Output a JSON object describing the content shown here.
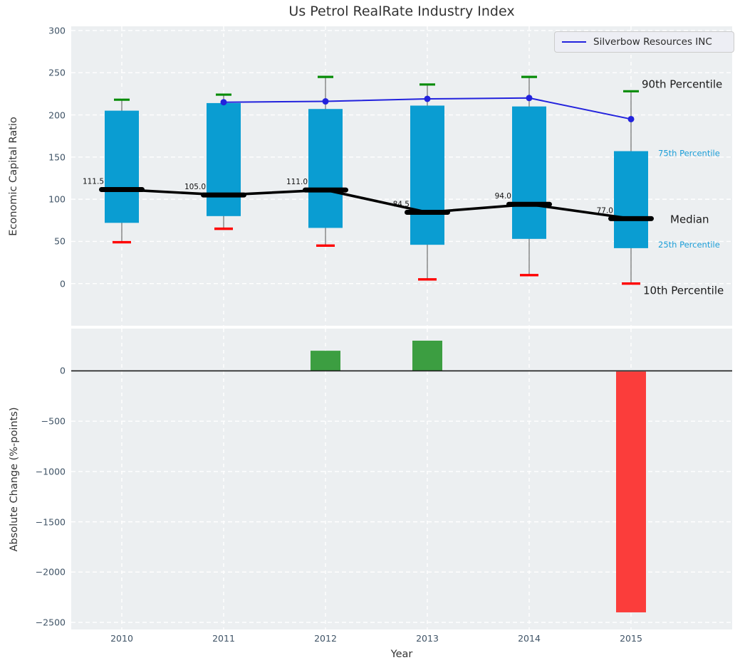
{
  "figure": {
    "title": "Us Petrol RealRate Industry Index",
    "legend": {
      "label": "Silverbow Resources INC"
    },
    "colors": {
      "axes_background": "#eceff1",
      "grid": "#ffffff",
      "box_fill": "#0a9dd2",
      "whisker": "#6e6e6e",
      "cap_90th_green": "#078c07",
      "cap_10th_red": "#fe0000",
      "median_black": "#000000",
      "company_line_blue": "#2222dd",
      "bar_positive_green": "#3c9e41",
      "bar_negative_red": "#fb3d3b",
      "percentile_label_blue": "#1b9ed8",
      "tick_label": "#3f5366"
    }
  },
  "chart_data": [
    {
      "type": "box",
      "title": "Us Petrol RealRate Industry Index",
      "ylabel": "Economic Capital Ratio",
      "ylim": [
        -50,
        305
      ],
      "yticks": [
        300,
        250,
        200,
        150,
        100,
        50,
        0
      ],
      "grid": true,
      "legend_position": "upper right",
      "categories": [
        "2010",
        "2011",
        "2012",
        "2013",
        "2014",
        "2015"
      ],
      "stats": [
        {
          "year": "2010",
          "p10": 49,
          "p25": 72,
          "median": 111.5,
          "p75": 205,
          "p90": 218,
          "median_label": "111.5"
        },
        {
          "year": "2011",
          "p10": 65,
          "p25": 80,
          "median": 105.0,
          "p75": 214,
          "p90": 224,
          "median_label": "105.0"
        },
        {
          "year": "2012",
          "p10": 45,
          "p25": 66,
          "median": 111.0,
          "p75": 207,
          "p90": 245,
          "median_label": "111.0"
        },
        {
          "year": "2013",
          "p10": 5,
          "p25": 46,
          "median": 84.5,
          "p75": 211,
          "p90": 236,
          "median_label": "84.5"
        },
        {
          "year": "2014",
          "p10": 10,
          "p25": 53,
          "median": 94.0,
          "p75": 210,
          "p90": 245,
          "median_label": "94.0"
        },
        {
          "year": "2015",
          "p10": 0,
          "p25": 42,
          "median": 77.0,
          "p75": 157,
          "p90": 228,
          "median_label": "77.0"
        }
      ],
      "series": [
        {
          "name": "Silverbow Resources INC",
          "color": "#2222dd",
          "values": [
            null,
            215,
            216,
            219,
            220,
            195
          ]
        },
        {
          "name": "Median",
          "color": "#000000",
          "values": [
            111.5,
            105.0,
            111.0,
            84.5,
            94.0,
            77.0
          ]
        }
      ],
      "annotations": [
        {
          "text": "90th Percentile",
          "anchor": "p90",
          "color": "#1a1a1a",
          "size": 15
        },
        {
          "text": "75th Percentile",
          "anchor": "p75",
          "color": "#1b9ed8",
          "size": 11.5
        },
        {
          "text": "Median",
          "anchor": "median",
          "color": "#1a1a1a",
          "size": 15
        },
        {
          "text": "25th Percentile",
          "anchor": "p25",
          "color": "#1b9ed8",
          "size": 11.5
        },
        {
          "text": "10th Percentile",
          "anchor": "p10",
          "color": "#1a1a1a",
          "size": 15
        }
      ]
    },
    {
      "type": "bar",
      "ylabel": "Absolute Change (%-points)",
      "xlabel": "Year",
      "ylim": [
        -2570,
        420
      ],
      "yticks": [
        0,
        -500,
        -1000,
        -1500,
        -2000,
        -2500
      ],
      "grid": true,
      "categories": [
        "2010",
        "2011",
        "2012",
        "2013",
        "2014",
        "2015"
      ],
      "values": [
        0,
        0,
        200,
        300,
        0,
        -2400
      ],
      "positive_color": "#3c9e41",
      "negative_color": "#fb3d3b"
    }
  ]
}
